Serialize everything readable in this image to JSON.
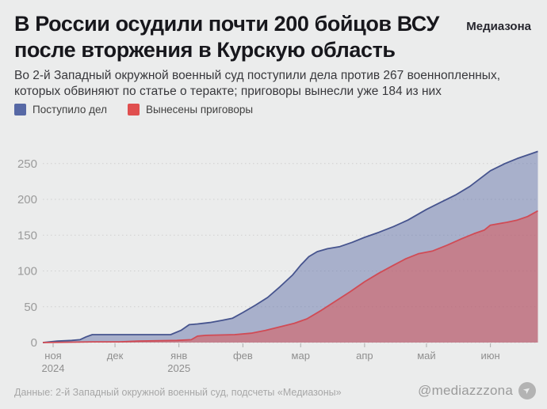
{
  "header": {
    "title": "В России осудили почти 200 бойцов ВСУ\nпосле вторжения в Курскую область",
    "brand": "Медиазона",
    "subtitle": "Во 2-й Западный окружной военный суд поступили дела против 267 военнопленных,\nкоторых обвиняют по статье о теракте; приговоры вынесли уже 184 из них"
  },
  "legend": {
    "items": [
      {
        "label": "Поступило дел",
        "color": "#5668a5"
      },
      {
        "label": "Вынесены приговоры",
        "color": "#e04f4f"
      }
    ]
  },
  "chart_data": {
    "type": "area",
    "title": "Дела и приговоры военнопленным ВСУ во 2-м Западном окружном военном суде",
    "grid": "dotted",
    "legend_position": "top-left",
    "y_axis": {
      "ticks": [
        0,
        50,
        100,
        150,
        200,
        250
      ],
      "range": [
        0,
        275
      ]
    },
    "x_axis": {
      "range": [
        "2024-10-27",
        "2025-06-24"
      ],
      "ticks": [
        {
          "label": "ноя",
          "sublabel": "2024",
          "date": "2024-11-01"
        },
        {
          "label": "дек",
          "sublabel": "",
          "date": "2024-12-01"
        },
        {
          "label": "янв",
          "sublabel": "2025",
          "date": "2025-01-01"
        },
        {
          "label": "фев",
          "sublabel": "",
          "date": "2025-02-01"
        },
        {
          "label": "мар",
          "sublabel": "",
          "date": "2025-03-01"
        },
        {
          "label": "апр",
          "sublabel": "",
          "date": "2025-04-01"
        },
        {
          "label": "май",
          "sublabel": "",
          "date": "2025-05-01"
        },
        {
          "label": "июн",
          "sublabel": "",
          "date": "2025-06-01"
        }
      ]
    },
    "series": [
      {
        "name": "Поступило дел",
        "final_value": 267,
        "line_color": "#46548e",
        "fill_color": "rgba(86,104,165,0.45)",
        "points": [
          [
            "2024-10-27",
            0
          ],
          [
            "2024-11-03",
            2
          ],
          [
            "2024-11-10",
            3
          ],
          [
            "2024-11-14",
            4
          ],
          [
            "2024-11-17",
            8
          ],
          [
            "2024-11-20",
            11
          ],
          [
            "2024-12-28",
            11
          ],
          [
            "2025-01-02",
            17
          ],
          [
            "2025-01-06",
            25
          ],
          [
            "2025-01-10",
            26
          ],
          [
            "2025-01-16",
            28
          ],
          [
            "2025-01-22",
            31
          ],
          [
            "2025-01-27",
            34
          ],
          [
            "2025-02-01",
            42
          ],
          [
            "2025-02-07",
            52
          ],
          [
            "2025-02-13",
            63
          ],
          [
            "2025-02-19",
            78
          ],
          [
            "2025-02-25",
            94
          ],
          [
            "2025-03-01",
            108
          ],
          [
            "2025-03-05",
            120
          ],
          [
            "2025-03-09",
            127
          ],
          [
            "2025-03-14",
            131
          ],
          [
            "2025-03-20",
            134
          ],
          [
            "2025-03-26",
            140
          ],
          [
            "2025-04-01",
            147
          ],
          [
            "2025-04-08",
            154
          ],
          [
            "2025-04-15",
            162
          ],
          [
            "2025-04-22",
            171
          ],
          [
            "2025-05-01",
            186
          ],
          [
            "2025-05-08",
            196
          ],
          [
            "2025-05-15",
            206
          ],
          [
            "2025-05-22",
            218
          ],
          [
            "2025-06-01",
            240
          ],
          [
            "2025-06-08",
            250
          ],
          [
            "2025-06-14",
            257
          ],
          [
            "2025-06-20",
            263
          ],
          [
            "2025-06-24",
            267
          ]
        ]
      },
      {
        "name": "Вынесены приговоры",
        "final_value": 184,
        "line_color": "#d04b55",
        "fill_color": "rgba(224,79,79,0.5)",
        "points": [
          [
            "2024-10-27",
            0
          ],
          [
            "2024-11-20",
            1
          ],
          [
            "2024-12-03",
            1
          ],
          [
            "2024-12-12",
            2
          ],
          [
            "2024-12-31",
            3
          ],
          [
            "2025-01-07",
            4
          ],
          [
            "2025-01-10",
            9
          ],
          [
            "2025-01-14",
            10
          ],
          [
            "2025-01-28",
            11
          ],
          [
            "2025-02-05",
            13
          ],
          [
            "2025-02-12",
            17
          ],
          [
            "2025-02-19",
            22
          ],
          [
            "2025-02-26",
            27
          ],
          [
            "2025-03-04",
            33
          ],
          [
            "2025-03-11",
            45
          ],
          [
            "2025-03-18",
            58
          ],
          [
            "2025-03-25",
            71
          ],
          [
            "2025-04-01",
            85
          ],
          [
            "2025-04-08",
            97
          ],
          [
            "2025-04-15",
            108
          ],
          [
            "2025-04-21",
            117
          ],
          [
            "2025-04-27",
            124
          ],
          [
            "2025-05-04",
            128
          ],
          [
            "2025-05-11",
            136
          ],
          [
            "2025-05-18",
            145
          ],
          [
            "2025-05-24",
            152
          ],
          [
            "2025-05-29",
            157
          ],
          [
            "2025-06-01",
            164
          ],
          [
            "2025-06-09",
            168
          ],
          [
            "2025-06-14",
            171
          ],
          [
            "2025-06-19",
            176
          ],
          [
            "2025-06-24",
            184
          ]
        ]
      }
    ]
  },
  "footer": {
    "source": "Данные: 2-й Западный окружной военный суд, подсчеты «Медиазоны»",
    "handle": "@mediazzzona",
    "social_icon": "telegram-icon"
  },
  "colors": {
    "background": "#ebecec",
    "gridline": "#cfcfcf",
    "axis_text": "#9b9b9b",
    "tick_mark": "#adadad"
  }
}
